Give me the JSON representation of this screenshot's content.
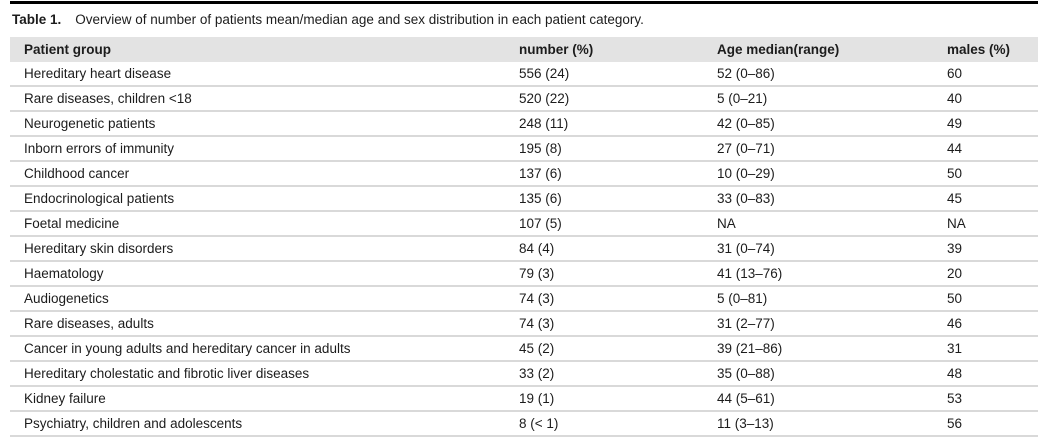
{
  "caption": {
    "label": "Table 1.",
    "text": "Overview of number of patients mean/median age and sex distribution in each patient category."
  },
  "table": {
    "columns": [
      "Patient group",
      "number (%)",
      "Age median(range)",
      "males (%)"
    ],
    "rows": [
      [
        "Hereditary heart disease",
        "556 (24)",
        "52 (0–86)",
        "60"
      ],
      [
        "Rare diseases, children <18",
        "520 (22)",
        "5 (0–21)",
        "40"
      ],
      [
        "Neurogenetic patients",
        "248 (11)",
        "42 (0–85)",
        "49"
      ],
      [
        "Inborn errors of immunity",
        "195 (8)",
        "27 (0–71)",
        "44"
      ],
      [
        "Childhood cancer",
        "137 (6)",
        "10 (0–29)",
        "50"
      ],
      [
        "Endocrinological patients",
        "135 (6)",
        "33 (0–83)",
        "45"
      ],
      [
        "Foetal medicine",
        "107 (5)",
        "NA",
        "NA"
      ],
      [
        "Hereditary skin disorders",
        "84 (4)",
        "31 (0–74)",
        "39"
      ],
      [
        "Haematology",
        "79 (3)",
        "41 (13–76)",
        "20"
      ],
      [
        "Audiogenetics",
        "74 (3)",
        "5 (0–81)",
        "50"
      ],
      [
        "Rare diseases, adults",
        "74 (3)",
        "31 (2–77)",
        "46"
      ],
      [
        "Cancer in young adults and hereditary cancer in adults",
        "45 (2)",
        "39 (21–86)",
        "31"
      ],
      [
        "Hereditary cholestatic and fibrotic liver diseases",
        "33 (2)",
        "35 (0–88)",
        "48"
      ],
      [
        "Kidney failure",
        "19 (1)",
        "44 (5–61)",
        "53"
      ],
      [
        "Psychiatry, children and adolescents",
        "8 (< 1)",
        "11 (3–13)",
        "56"
      ]
    ]
  },
  "colors": {
    "header_background": "#e3e3e3",
    "row_divider": "#d9d9d9",
    "top_rule": "#000000",
    "text": "#1c1c1c"
  }
}
